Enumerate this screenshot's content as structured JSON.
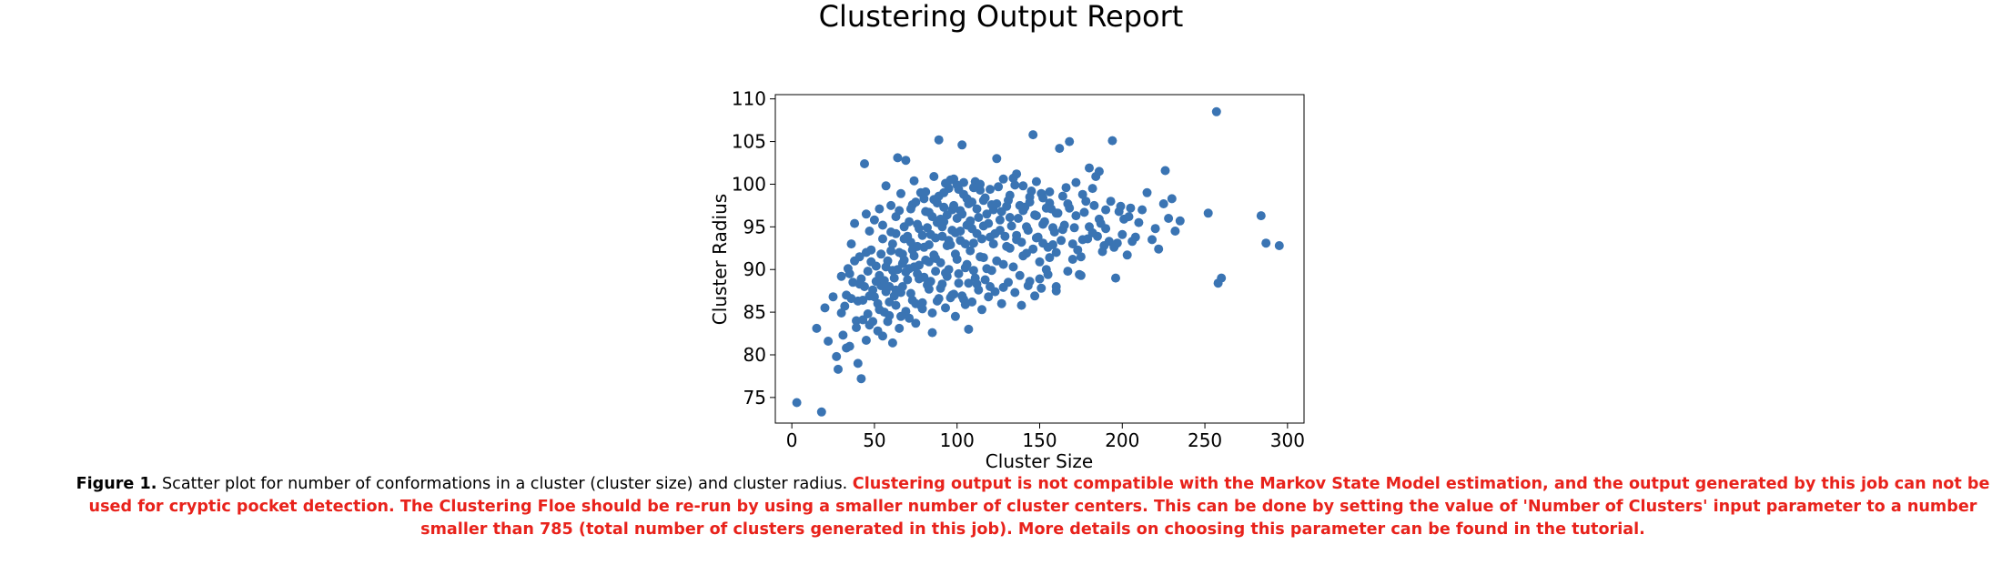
{
  "report": {
    "title": "Clustering Output Report"
  },
  "caption": {
    "figure_label": "Figure 1.",
    "description": "Scatter plot for number of conformations in a cluster (cluster size) and cluster radius.",
    "warning": "Clustering output is not compatible with the Markov State Model estimation, and the output generated by this job can not be used for cryptic pocket detection. The Clustering Floe should be re-run by using a smaller number of cluster centers. This can be done by setting the value of 'Number of Clusters' input parameter to a number smaller than 785 (total number of clusters generated in this job). More details on choosing this parameter can be found in the tutorial."
  },
  "colors": {
    "points": "#3a74b3",
    "warning_text": "#e8221b"
  },
  "chart_data": {
    "type": "scatter",
    "xlabel": "Cluster Size",
    "ylabel": "Cluster Radius",
    "xlim": [
      -10,
      310
    ],
    "ylim": [
      72,
      110.5
    ],
    "x_ticks": [
      0,
      50,
      100,
      150,
      200,
      250,
      300
    ],
    "y_ticks": [
      75,
      80,
      85,
      90,
      95,
      100,
      105,
      110
    ],
    "grid": false,
    "points": [
      [
        3,
        74.4
      ],
      [
        18,
        73.3
      ],
      [
        15,
        83.1
      ],
      [
        20,
        85.5
      ],
      [
        22,
        81.6
      ],
      [
        25,
        86.8
      ],
      [
        27,
        79.8
      ],
      [
        28,
        78.3
      ],
      [
        30,
        89.2
      ],
      [
        31,
        82.3
      ],
      [
        32,
        85.7
      ],
      [
        33,
        87.0
      ],
      [
        34,
        90.1
      ],
      [
        35,
        81.0
      ],
      [
        36,
        93.0
      ],
      [
        37,
        88.5
      ],
      [
        38,
        95.4
      ],
      [
        39,
        84.0
      ],
      [
        40,
        79.0
      ],
      [
        41,
        91.5
      ],
      [
        42,
        77.2
      ],
      [
        43,
        86.4
      ],
      [
        44,
        102.4
      ],
      [
        45,
        96.5
      ],
      [
        46,
        89.8
      ],
      [
        47,
        83.5
      ],
      [
        48,
        92.3
      ],
      [
        49,
        87.6
      ],
      [
        50,
        95.8
      ],
      [
        51,
        90.4
      ],
      [
        52,
        82.8
      ],
      [
        53,
        97.1
      ],
      [
        54,
        88.1
      ],
      [
        55,
        93.6
      ],
      [
        56,
        85.0
      ],
      [
        57,
        99.8
      ],
      [
        58,
        91.0
      ],
      [
        59,
        86.2
      ],
      [
        60,
        94.4
      ],
      [
        61,
        81.4
      ],
      [
        62,
        89.0
      ],
      [
        63,
        96.2
      ],
      [
        64,
        103.1
      ],
      [
        65,
        92.0
      ],
      [
        66,
        87.3
      ],
      [
        67,
        90.7
      ],
      [
        68,
        95.0
      ],
      [
        69,
        102.8
      ],
      [
        70,
        88.8
      ],
      [
        71,
        84.3
      ],
      [
        72,
        93.2
      ],
      [
        73,
        97.6
      ],
      [
        74,
        91.6
      ],
      [
        75,
        86.0
      ],
      [
        76,
        89.5
      ],
      [
        77,
        94.8
      ],
      [
        78,
        99.0
      ],
      [
        79,
        85.4
      ],
      [
        80,
        92.6
      ],
      [
        81,
        96.8
      ],
      [
        82,
        88.2
      ],
      [
        83,
        90.9
      ],
      [
        84,
        94.1
      ],
      [
        85,
        82.6
      ],
      [
        86,
        98.2
      ],
      [
        87,
        91.3
      ],
      [
        88,
        95.5
      ],
      [
        89,
        105.2
      ],
      [
        90,
        87.8
      ],
      [
        91,
        93.9
      ],
      [
        92,
        97.3
      ],
      [
        93,
        89.6
      ],
      [
        94,
        92.8
      ],
      [
        95,
        99.5
      ],
      [
        96,
        86.7
      ],
      [
        97,
        94.6
      ],
      [
        98,
        100.6
      ],
      [
        99,
        91.8
      ],
      [
        100,
        96.0
      ],
      [
        101,
        88.4
      ],
      [
        102,
        93.4
      ],
      [
        103,
        104.6
      ],
      [
        104,
        98.8
      ],
      [
        105,
        90.2
      ],
      [
        106,
        95.2
      ],
      [
        107,
        83.0
      ],
      [
        108,
        92.2
      ],
      [
        109,
        97.9
      ],
      [
        110,
        89.9
      ],
      [
        112,
        94.2
      ],
      [
        114,
        99.3
      ],
      [
        116,
        91.4
      ],
      [
        118,
        96.5
      ],
      [
        120,
        88.0
      ],
      [
        122,
        93.0
      ],
      [
        124,
        103.0
      ],
      [
        126,
        95.8
      ],
      [
        128,
        90.6
      ],
      [
        130,
        97.4
      ],
      [
        132,
        92.5
      ],
      [
        134,
        100.7
      ],
      [
        136,
        94.0
      ],
      [
        138,
        89.3
      ],
      [
        140,
        96.9
      ],
      [
        142,
        91.9
      ],
      [
        144,
        98.5
      ],
      [
        146,
        105.8
      ],
      [
        148,
        93.7
      ],
      [
        150,
        88.9
      ],
      [
        152,
        95.3
      ],
      [
        154,
        90.0
      ],
      [
        156,
        97.8
      ],
      [
        158,
        92.9
      ],
      [
        160,
        87.5
      ],
      [
        162,
        104.2
      ],
      [
        164,
        94.7
      ],
      [
        166,
        99.6
      ],
      [
        168,
        105.0
      ],
      [
        170,
        91.2
      ],
      [
        172,
        96.3
      ],
      [
        174,
        89.4
      ],
      [
        176,
        93.5
      ],
      [
        178,
        98.0
      ],
      [
        180,
        101.9
      ],
      [
        182,
        94.3
      ],
      [
        184,
        100.9
      ],
      [
        186,
        95.9
      ],
      [
        188,
        92.1
      ],
      [
        190,
        97.0
      ],
      [
        192,
        93.3
      ],
      [
        194,
        105.1
      ],
      [
        196,
        89.0
      ],
      [
        198,
        96.8
      ],
      [
        200,
        94.1
      ],
      [
        203,
        91.7
      ],
      [
        205,
        97.2
      ],
      [
        208,
        93.8
      ],
      [
        210,
        95.5
      ],
      [
        215,
        99.0
      ],
      [
        218,
        93.5
      ],
      [
        222,
        92.4
      ],
      [
        225,
        97.7
      ],
      [
        226,
        101.6
      ],
      [
        228,
        96.0
      ],
      [
        230,
        98.3
      ],
      [
        232,
        94.5
      ],
      [
        235,
        95.7
      ],
      [
        252,
        96.6
      ],
      [
        257,
        108.5
      ],
      [
        258,
        88.4
      ],
      [
        260,
        89.0
      ],
      [
        284,
        96.3
      ],
      [
        287,
        93.1
      ],
      [
        295,
        92.8
      ],
      [
        44,
        88.0
      ],
      [
        46,
        84.8
      ],
      [
        48,
        90.9
      ],
      [
        52,
        86.0
      ],
      [
        54,
        91.8
      ],
      [
        56,
        88.7
      ],
      [
        58,
        83.9
      ],
      [
        60,
        92.2
      ],
      [
        62,
        86.9
      ],
      [
        64,
        90.0
      ],
      [
        66,
        84.5
      ],
      [
        68,
        91.1
      ],
      [
        70,
        93.9
      ],
      [
        72,
        87.2
      ],
      [
        74,
        90.3
      ],
      [
        76,
        92.7
      ],
      [
        78,
        85.8
      ],
      [
        80,
        89.1
      ],
      [
        82,
        94.9
      ],
      [
        84,
        88.6
      ],
      [
        86,
        91.7
      ],
      [
        88,
        86.3
      ],
      [
        90,
        90.8
      ],
      [
        92,
        95.6
      ],
      [
        94,
        89.2
      ],
      [
        96,
        92.9
      ],
      [
        98,
        87.1
      ],
      [
        100,
        91.2
      ],
      [
        102,
        94.5
      ],
      [
        104,
        86.5
      ],
      [
        106,
        90.6
      ],
      [
        108,
        95.7
      ],
      [
        110,
        93.1
      ],
      [
        112,
        88.3
      ],
      [
        114,
        91.5
      ],
      [
        116,
        95.1
      ],
      [
        118,
        90.1
      ],
      [
        120,
        93.8
      ],
      [
        122,
        97.0
      ],
      [
        124,
        91.0
      ],
      [
        126,
        94.6
      ],
      [
        128,
        87.9
      ],
      [
        130,
        92.7
      ],
      [
        132,
        96.1
      ],
      [
        134,
        90.3
      ],
      [
        136,
        93.5
      ],
      [
        138,
        97.5
      ],
      [
        140,
        91.6
      ],
      [
        142,
        95.0
      ],
      [
        144,
        88.6
      ],
      [
        146,
        92.4
      ],
      [
        148,
        96.3
      ],
      [
        150,
        90.9
      ],
      [
        152,
        93.1
      ],
      [
        154,
        97.2
      ],
      [
        156,
        91.4
      ],
      [
        158,
        94.9
      ],
      [
        160,
        92.0
      ],
      [
        165,
        95.2
      ],
      [
        170,
        93.0
      ],
      [
        175,
        91.5
      ],
      [
        180,
        95.0
      ],
      [
        185,
        93.9
      ],
      [
        190,
        94.8
      ],
      [
        195,
        92.6
      ],
      [
        35,
        89.5
      ],
      [
        38,
        91.0
      ],
      [
        40,
        86.3
      ],
      [
        42,
        88.9
      ],
      [
        45,
        92.0
      ],
      [
        47,
        94.5
      ],
      [
        50,
        86.8
      ],
      [
        53,
        89.3
      ],
      [
        55,
        95.2
      ],
      [
        57,
        90.3
      ],
      [
        59,
        88.0
      ],
      [
        61,
        93.0
      ],
      [
        63,
        87.6
      ],
      [
        65,
        96.9
      ],
      [
        67,
        91.8
      ],
      [
        69,
        89.7
      ],
      [
        71,
        95.6
      ],
      [
        73,
        92.3
      ],
      [
        75,
        97.9
      ],
      [
        77,
        90.5
      ],
      [
        79,
        94.0
      ],
      [
        81,
        99.1
      ],
      [
        83,
        92.9
      ],
      [
        85,
        96.2
      ],
      [
        87,
        93.7
      ],
      [
        89,
        98.6
      ],
      [
        91,
        95.0
      ],
      [
        93,
        100.1
      ],
      [
        95,
        93.4
      ],
      [
        97,
        97.0
      ],
      [
        99,
        94.3
      ],
      [
        101,
        99.4
      ],
      [
        103,
        96.5
      ],
      [
        105,
        93.0
      ],
      [
        107,
        97.7
      ],
      [
        109,
        94.8
      ],
      [
        111,
        100.3
      ],
      [
        113,
        96.1
      ],
      [
        115,
        93.6
      ],
      [
        117,
        98.4
      ],
      [
        119,
        95.4
      ],
      [
        121,
        97.6
      ],
      [
        123,
        94.2
      ],
      [
        125,
        99.7
      ],
      [
        127,
        96.8
      ],
      [
        129,
        93.9
      ],
      [
        131,
        98.1
      ],
      [
        133,
        95.1
      ],
      [
        135,
        99.9
      ],
      [
        137,
        96.0
      ],
      [
        139,
        93.2
      ],
      [
        141,
        97.3
      ],
      [
        143,
        94.6
      ],
      [
        145,
        99.2
      ],
      [
        147,
        96.4
      ],
      [
        149,
        93.8
      ],
      [
        151,
        98.9
      ],
      [
        153,
        95.6
      ],
      [
        155,
        92.6
      ],
      [
        157,
        97.1
      ],
      [
        159,
        94.4
      ],
      [
        161,
        96.6
      ],
      [
        163,
        93.4
      ],
      [
        167,
        97.7
      ],
      [
        171,
        94.9
      ],
      [
        173,
        92.3
      ],
      [
        177,
        96.7
      ],
      [
        179,
        93.6
      ],
      [
        183,
        97.5
      ],
      [
        187,
        95.4
      ],
      [
        189,
        92.8
      ],
      [
        193,
        98.0
      ],
      [
        197,
        93.1
      ],
      [
        201,
        95.9
      ],
      [
        206,
        93.3
      ],
      [
        212,
        97.0
      ],
      [
        220,
        94.8
      ],
      [
        30,
        84.9
      ],
      [
        33,
        80.8
      ],
      [
        36,
        86.6
      ],
      [
        39,
        83.2
      ],
      [
        41,
        88.3
      ],
      [
        43,
        84.1
      ],
      [
        45,
        81.7
      ],
      [
        47,
        86.9
      ],
      [
        49,
        83.9
      ],
      [
        51,
        88.6
      ],
      [
        53,
        85.3
      ],
      [
        55,
        82.2
      ],
      [
        57,
        87.4
      ],
      [
        59,
        84.6
      ],
      [
        61,
        89.9
      ],
      [
        63,
        85.8
      ],
      [
        65,
        83.1
      ],
      [
        67,
        88.0
      ],
      [
        69,
        85.1
      ],
      [
        71,
        90.1
      ],
      [
        73,
        86.4
      ],
      [
        75,
        83.7
      ],
      [
        77,
        88.9
      ],
      [
        79,
        86.1
      ],
      [
        81,
        91.1
      ],
      [
        83,
        87.7
      ],
      [
        85,
        84.9
      ],
      [
        87,
        89.8
      ],
      [
        89,
        86.6
      ],
      [
        91,
        88.3
      ],
      [
        93,
        85.5
      ],
      [
        95,
        90.0
      ],
      [
        97,
        87.0
      ],
      [
        99,
        84.5
      ],
      [
        101,
        89.5
      ],
      [
        103,
        86.9
      ],
      [
        105,
        85.9
      ],
      [
        107,
        88.4
      ],
      [
        109,
        86.2
      ],
      [
        111,
        89.0
      ],
      [
        113,
        87.6
      ],
      [
        115,
        85.3
      ],
      [
        117,
        88.8
      ],
      [
        119,
        86.8
      ],
      [
        121,
        89.9
      ],
      [
        123,
        87.4
      ],
      [
        127,
        86.0
      ],
      [
        131,
        88.5
      ],
      [
        135,
        87.3
      ],
      [
        139,
        85.8
      ],
      [
        143,
        88.1
      ],
      [
        147,
        86.9
      ],
      [
        151,
        87.8
      ],
      [
        155,
        89.4
      ],
      [
        160,
        88.0
      ],
      [
        167,
        89.8
      ],
      [
        175,
        89.3
      ],
      [
        60,
        97.5
      ],
      [
        63,
        94.2
      ],
      [
        66,
        98.9
      ],
      [
        68,
        93.6
      ],
      [
        72,
        97.1
      ],
      [
        74,
        100.4
      ],
      [
        76,
        95.3
      ],
      [
        80,
        98.3
      ],
      [
        83,
        96.7
      ],
      [
        86,
        100.9
      ],
      [
        88,
        97.8
      ],
      [
        90,
        95.9
      ],
      [
        92,
        99.0
      ],
      [
        94,
        96.4
      ],
      [
        96,
        100.5
      ],
      [
        98,
        97.5
      ],
      [
        100,
        99.9
      ],
      [
        102,
        96.9
      ],
      [
        104,
        100.2
      ],
      [
        106,
        98.3
      ],
      [
        108,
        95.6
      ],
      [
        110,
        99.6
      ],
      [
        112,
        97.1
      ],
      [
        114,
        100.0
      ],
      [
        116,
        98.1
      ],
      [
        120,
        99.4
      ],
      [
        124,
        97.7
      ],
      [
        128,
        100.6
      ],
      [
        132,
        98.7
      ],
      [
        136,
        101.2
      ],
      [
        140,
        99.8
      ],
      [
        144,
        97.9
      ],
      [
        148,
        100.3
      ],
      [
        152,
        98.4
      ],
      [
        156,
        99.1
      ],
      [
        160,
        96.6
      ],
      [
        164,
        98.6
      ],
      [
        168,
        97.2
      ],
      [
        172,
        100.2
      ],
      [
        176,
        98.8
      ],
      [
        182,
        99.5
      ],
      [
        186,
        101.5
      ],
      [
        199,
        97.4
      ],
      [
        204,
        96.2
      ]
    ]
  }
}
